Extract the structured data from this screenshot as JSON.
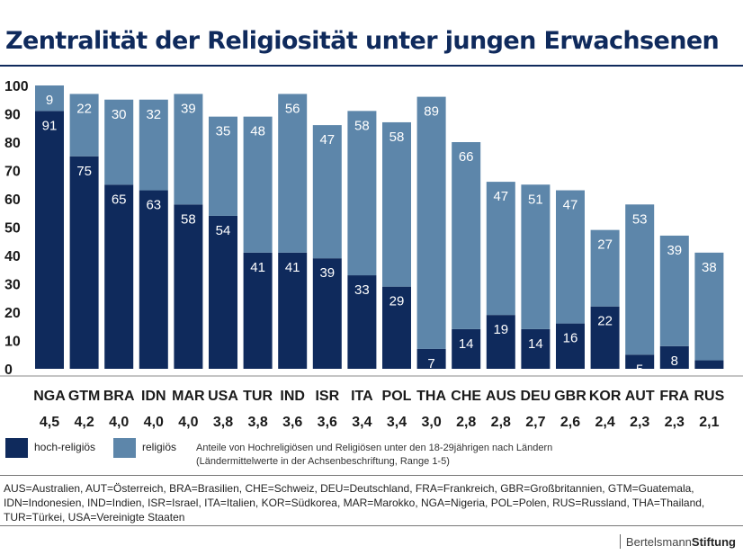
{
  "title": "Zentralität der Religiosität unter jungen Erwachsenen",
  "colors": {
    "hoch_religioes": "#0f2a5c",
    "religioes": "#5d86aa",
    "title": "#0f2a5c",
    "label_on_bar": "#ffffff"
  },
  "chart_data": {
    "type": "bar",
    "stacked": true,
    "title": "Zentralität der Religiosität unter jungen Erwachsenen",
    "categories": [
      "NGA",
      "GTM",
      "BRA",
      "IDN",
      "MAR",
      "USA",
      "TUR",
      "IND",
      "ISR",
      "ITA",
      "POL",
      "THA",
      "CHE",
      "AUS",
      "DEU",
      "GBR",
      "KOR",
      "AUT",
      "FRA",
      "RUS"
    ],
    "category_means": [
      "4,5",
      "4,2",
      "4,0",
      "4,0",
      "4,0",
      "3,8",
      "3,8",
      "3,6",
      "3,6",
      "3,4",
      "3,4",
      "3,0",
      "2,8",
      "2,8",
      "2,7",
      "2,6",
      "2,4",
      "2,3",
      "2,3",
      "2,1"
    ],
    "series": [
      {
        "name": "hoch-religiös",
        "color": "#0f2a5c",
        "values": [
          91,
          75,
          65,
          63,
          58,
          54,
          41,
          41,
          39,
          33,
          29,
          7,
          14,
          19,
          14,
          16,
          22,
          5,
          8,
          3
        ]
      },
      {
        "name": "religiös",
        "color": "#5d86aa",
        "values": [
          9,
          22,
          30,
          32,
          39,
          35,
          48,
          56,
          47,
          58,
          58,
          89,
          66,
          47,
          51,
          47,
          27,
          53,
          39,
          38
        ]
      }
    ],
    "yticks": [
      0,
      10,
      20,
      30,
      40,
      50,
      60,
      70,
      80,
      90,
      100
    ],
    "ylim": [
      0,
      100
    ],
    "xlabel": "",
    "ylabel": "",
    "grid": false,
    "legend_position": "bottom-left"
  },
  "legend": {
    "hoch_label": "hoch-religiös",
    "rel_label": "religiös"
  },
  "note": {
    "line1": "Anteile von Hochreligiösen und Religiösen unter den 18-29jährigen nach Ländern",
    "line2": "(Ländermittelwerte in der Achsenbeschriftung, Range 1-5)"
  },
  "abbreviations": "AUS=Australien, AUT=Österreich, BRA=Brasilien, CHE=Schweiz, DEU=Deutschland, FRA=Frankreich, GBR=Großbritannien, GTM=Guatemala, IDN=Indonesien, IND=Indien, ISR=Israel, ITA=Italien, KOR=Südkorea, MAR=Marokko, NGA=Nigeria, POL=Polen, RUS=Russland, THA=Thailand, TUR=Türkei, USA=Vereinigte Staaten",
  "brand": {
    "part1": "Bertelsmann",
    "part2": "Stiftung"
  }
}
